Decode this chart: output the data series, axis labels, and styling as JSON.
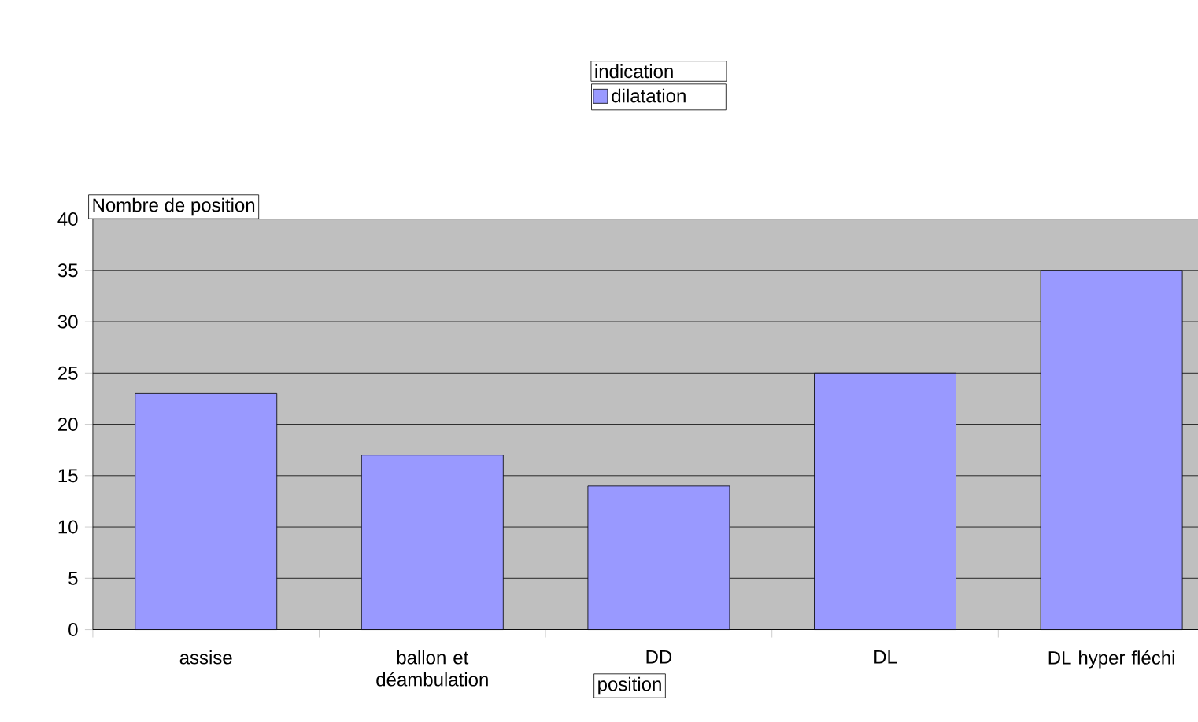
{
  "chart_data": {
    "type": "bar",
    "xlabel": "position",
    "ylabel": "Nombre de position",
    "legend_title": "indication",
    "categories": [
      "assise",
      "ballon et déambulation",
      "DD",
      "DL",
      "DL hyper fléchi"
    ],
    "series": [
      {
        "name": "dilatation",
        "color": "#9999ff",
        "values": [
          23,
          17,
          14,
          25,
          35
        ]
      }
    ],
    "ylim": [
      0,
      40
    ],
    "yticks": [
      0,
      5,
      10,
      15,
      20,
      25,
      30,
      35,
      40
    ],
    "grid": "y",
    "legend": "top"
  }
}
